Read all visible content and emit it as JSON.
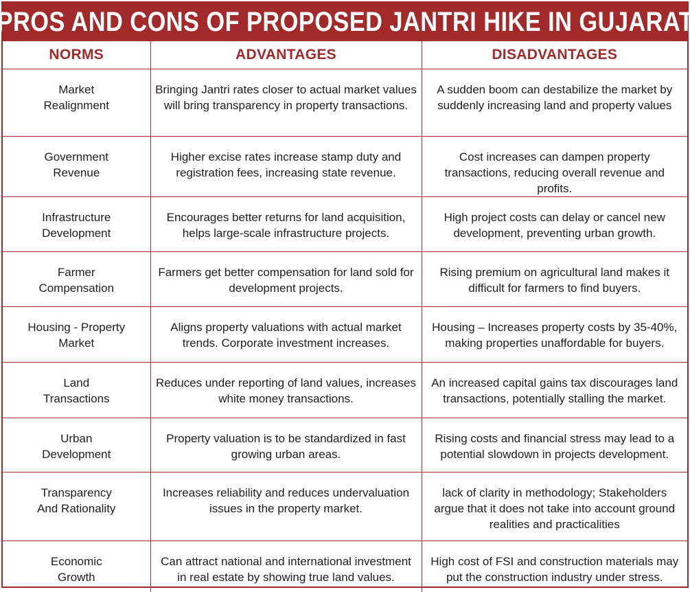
{
  "title": "PROS AND CONS OF PROPOSED JANTRI HIKE IN GUJARAT",
  "colors": {
    "accent": "#a32a2a",
    "text": "#1e1e1e",
    "background": "#ffffff"
  },
  "headers": {
    "norms": "NORMS",
    "advantages": "ADVANTAGES",
    "disadvantages": "DISADVANTAGES"
  },
  "rows": [
    {
      "norm": "Market\nRealignment",
      "advantage": "Bringing Jantri rates closer to actual market values will bring transparency in property transactions.",
      "disadvantage": "A sudden boom can destabilize the market by suddenly increasing land and property values"
    },
    {
      "norm": "Government\nRevenue",
      "advantage": "Higher excise rates increase stamp duty and registration fees, increasing state revenue.",
      "disadvantage": "Cost increases can dampen property transactions, reducing overall revenue and profits."
    },
    {
      "norm": "Infrastructure\nDevelopment",
      "advantage": "Encourages better returns for land acquisition, helps large-scale infrastructure projects.",
      "disadvantage": "High project costs can delay or cancel new development, preventing urban growth."
    },
    {
      "norm": "Farmer\nCompensation",
      "advantage": "Farmers get better compensation for land sold for development projects.",
      "disadvantage": "Rising premium on agricultural land makes it difficult for farmers to find buyers."
    },
    {
      "norm": "Housing - Property\nMarket",
      "advantage": "Aligns property valuations with actual market trends. Corporate investment increases.",
      "disadvantage": "Housing – Increases property costs by 35-40%, making properties unaffordable for buyers."
    },
    {
      "norm": "Land\nTransactions",
      "advantage": "Reduces under reporting of land values, increases white money transactions.",
      "disadvantage": "An increased capital gains tax discourages land transactions, potentially stalling the market."
    },
    {
      "norm": "Urban\nDevelopment",
      "advantage": "Property valuation is to be standardized in fast growing urban areas.",
      "disadvantage": "Rising costs and financial stress may lead to a potential slowdown in projects development."
    },
    {
      "norm": "Transparency\nAnd Rationality",
      "advantage": "Increases reliability and reduces undervaluation issues in the property market.",
      "disadvantage": "lack of clarity in methodology; Stakeholders argue that it does not take into account ground realities and practicalities"
    },
    {
      "norm": "Economic\nGrowth",
      "advantage": "Can attract national and international investment in real estate by showing true land values.",
      "disadvantage": "High cost of FSI and construction materials may put the construction industry under stress."
    }
  ]
}
